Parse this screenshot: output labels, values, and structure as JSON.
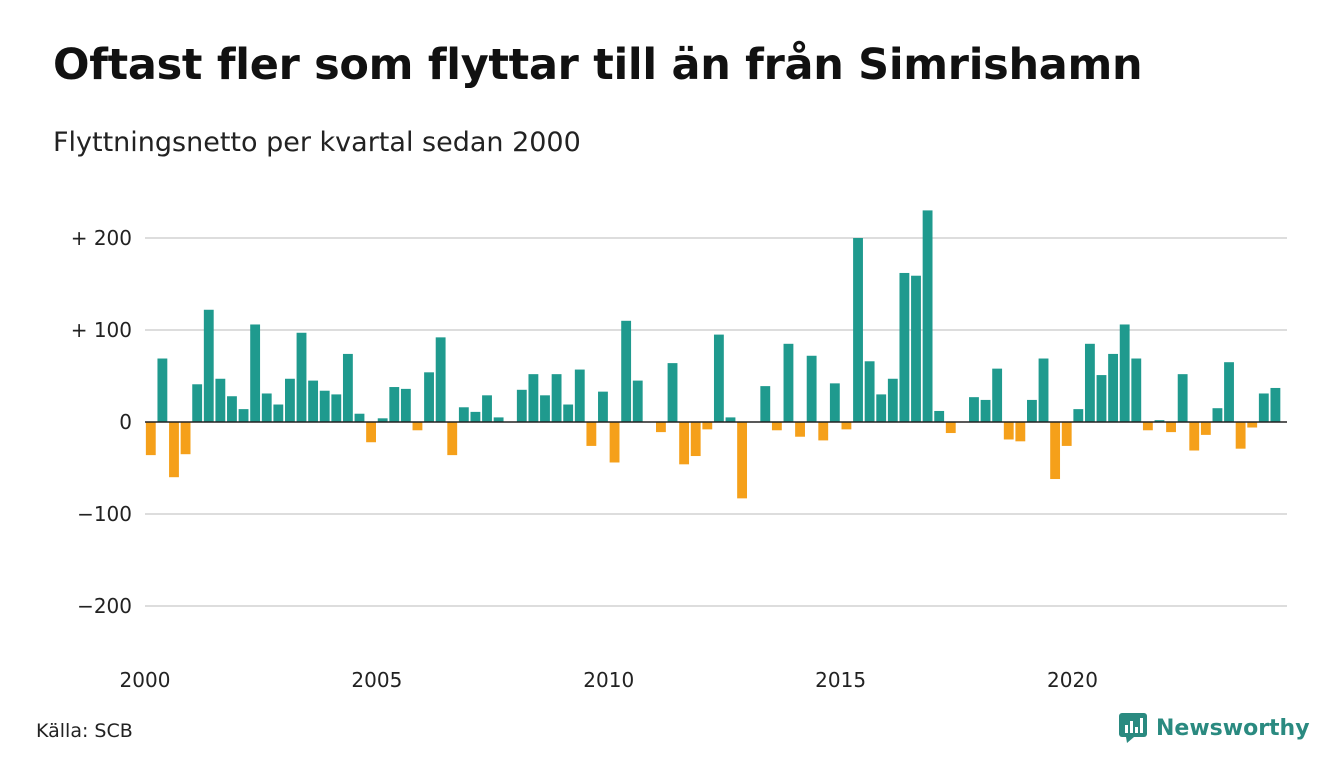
{
  "title": "Oftast fler som flyttar till än från Simrishamn",
  "subtitle": "Flyttningsnetto per kvartal sedan 2000",
  "source": "Källa: SCB",
  "brand": {
    "name": "Newsworthy",
    "icon": "newsworthy-logo-icon"
  },
  "colors": {
    "positive": "#1f9a8e",
    "negative": "#f5a01a",
    "grid": "#dddddd",
    "zero": "#222222"
  },
  "chart_data": {
    "type": "bar",
    "title": "Oftast fler som flyttar till än från Simrishamn",
    "subtitle": "Flyttningsnetto per kvartal sedan 2000",
    "xlabel": "",
    "ylabel": "",
    "ylim": [
      -250,
      230
    ],
    "yticks": [
      {
        "value": 200,
        "label": "+ 200"
      },
      {
        "value": 100,
        "label": "+ 100"
      },
      {
        "value": 0,
        "label": "0"
      },
      {
        "value": -100,
        "label": "−100"
      },
      {
        "value": -200,
        "label": "−200"
      }
    ],
    "xticks": [
      "2000",
      "2005",
      "2010",
      "2015",
      "2020"
    ],
    "start_year": 2000,
    "quarters_per_year": 4,
    "grid": true,
    "legend": "none",
    "values": [
      -36,
      69,
      -60,
      -35,
      41,
      122,
      47,
      28,
      14,
      106,
      31,
      19,
      47,
      97,
      45,
      34,
      30,
      74,
      9,
      -22,
      4,
      38,
      36,
      -9,
      54,
      92,
      -36,
      16,
      11,
      29,
      5,
      0,
      35,
      52,
      29,
      52,
      19,
      57,
      -26,
      33,
      -44,
      110,
      45,
      0,
      -11,
      64,
      -46,
      -37,
      -8,
      95,
      5,
      -83,
      0,
      39,
      -9,
      85,
      -16,
      72,
      -20,
      42,
      -8,
      200,
      66,
      30,
      47,
      162,
      159,
      230,
      12,
      -12,
      0,
      27,
      24,
      58,
      -19,
      -21,
      24,
      69,
      -62,
      -26,
      14,
      85,
      51,
      74,
      106,
      69,
      -9,
      2,
      -11,
      52,
      -31,
      -14,
      15,
      65,
      -29,
      -6,
      31,
      37
    ]
  }
}
